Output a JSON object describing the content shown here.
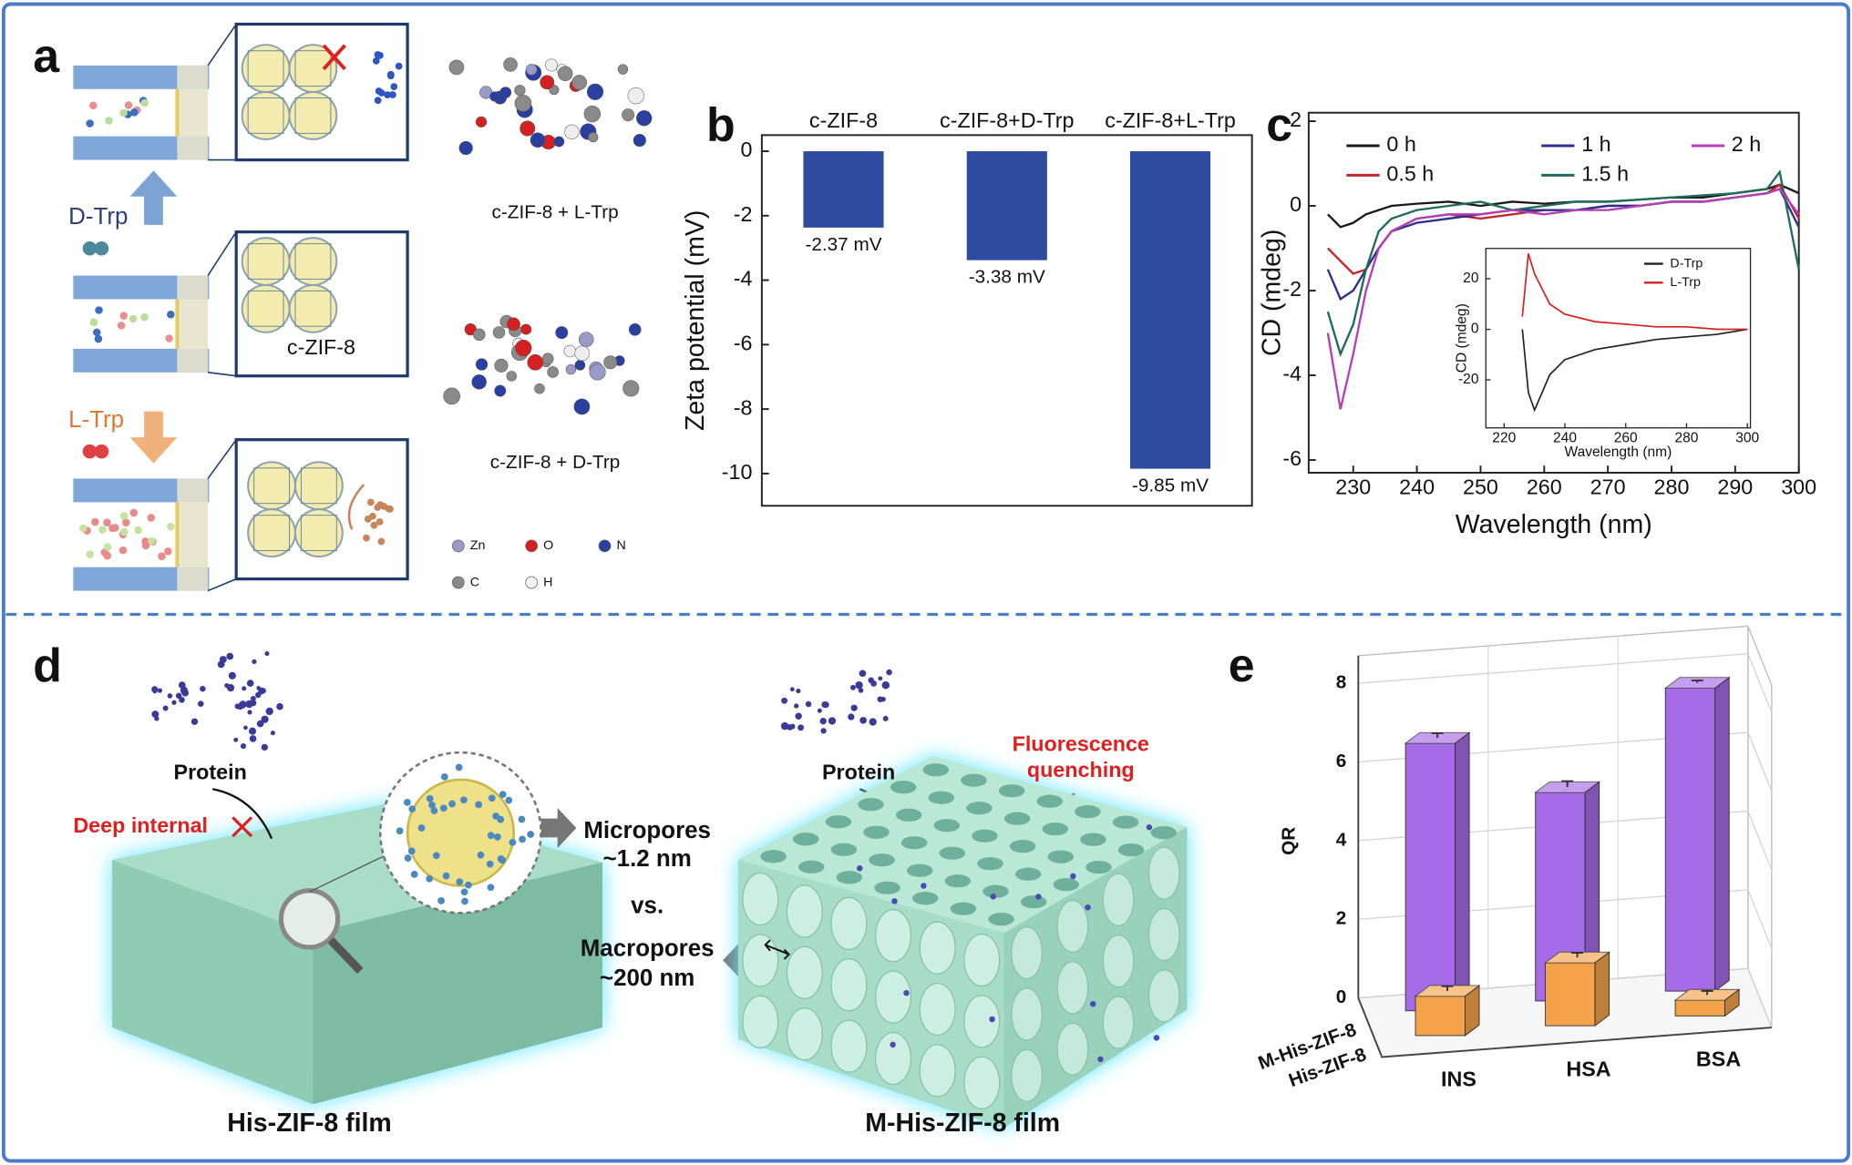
{
  "panel_labels": [
    "a",
    "b",
    "c",
    "d",
    "e"
  ],
  "panel_a": {
    "box_label": "c-ZIF-8",
    "up_label": "D-Trp",
    "down_label": "L-Trp",
    "top_model": "c-ZIF-8 + L-Trp",
    "bottom_model": "c-ZIF-8 + D-Trp",
    "atoms": [
      "Zn",
      "O",
      "N",
      "C",
      "H"
    ]
  },
  "panel_d": {
    "left_protein": "Protein",
    "right_protein": "Protein",
    "deep_internal": "Deep internal",
    "fluorescence": [
      "Fluorescence",
      "quenching"
    ],
    "micropores": [
      "Micropores",
      "~1.2 nm"
    ],
    "vs": "vs.",
    "macropores": [
      "Macropores",
      "~200 nm"
    ],
    "left_caption": "His-ZIF-8 film",
    "right_caption": "M-His-ZIF-8 film"
  },
  "chart_data": [
    {
      "type": "bar",
      "ylabel": "Zeta potential (mV)",
      "categories": [
        "c-ZIF-8",
        "c-ZIF-8+D-Trp",
        "c-ZIF-8+L-Trp"
      ],
      "values": [
        -2.37,
        -3.38,
        -9.85
      ],
      "value_labels": [
        "-2.37 mV",
        "-3.38 mV",
        "-9.85 mV"
      ],
      "color": "#2f4b9f",
      "ylim": [
        -11,
        0.5
      ],
      "yticks": [
        0,
        -2,
        -4,
        -6,
        -8,
        -10
      ]
    },
    {
      "type": "line",
      "xlabel": "Wavelength (nm)",
      "ylabel": "CD (mdeg)",
      "x": [
        226,
        228,
        230,
        232,
        234,
        236,
        240,
        245,
        250,
        255,
        260,
        265,
        270,
        275,
        280,
        285,
        290,
        295,
        297,
        300
      ],
      "series": [
        {
          "name": "0 h",
          "color": "#1a1a1a",
          "values": [
            -0.2,
            -0.5,
            -0.4,
            -0.2,
            -0.1,
            0,
            0.05,
            0.1,
            0,
            0.1,
            0.05,
            0.1,
            0.1,
            0.15,
            0.2,
            0.2,
            0.3,
            0.4,
            0.5,
            0.3
          ]
        },
        {
          "name": "0.5 h",
          "color": "#c0282d",
          "values": [
            -1.0,
            -1.3,
            -1.6,
            -1.5,
            -1.0,
            -0.6,
            -0.3,
            -0.2,
            -0.3,
            -0.2,
            -0.1,
            -0.1,
            0,
            0,
            0.1,
            0.1,
            0.2,
            0.3,
            0.5,
            -0.3
          ]
        },
        {
          "name": "1 h",
          "color": "#2c2f8c",
          "values": [
            -1.5,
            -2.2,
            -2.0,
            -1.5,
            -1.0,
            -0.6,
            -0.4,
            -0.3,
            -0.2,
            -0.1,
            -0.1,
            -0.1,
            0,
            0,
            0.1,
            0.1,
            0.2,
            0.3,
            0.4,
            -0.5
          ]
        },
        {
          "name": "1.5 h",
          "color": "#1f6b5c",
          "values": [
            -2.5,
            -3.5,
            -2.8,
            -1.5,
            -0.6,
            -0.3,
            -0.1,
            0,
            0.1,
            -0.1,
            0,
            0.1,
            0.1,
            0.15,
            0.2,
            0.25,
            0.3,
            0.4,
            0.8,
            -1.5
          ]
        },
        {
          "name": "2 h",
          "color": "#b43fb4",
          "values": [
            -3.0,
            -4.8,
            -3.5,
            -2.0,
            -1.0,
            -0.6,
            -0.3,
            -0.2,
            -0.2,
            -0.1,
            -0.2,
            -0.1,
            -0.1,
            0,
            0.1,
            0.1,
            0.2,
            0.3,
            0.4,
            -0.2
          ]
        }
      ],
      "xlim": [
        223,
        300
      ],
      "ylim": [
        -6.3,
        2.2
      ],
      "xticks": [
        230,
        240,
        250,
        260,
        270,
        280,
        290,
        300
      ],
      "yticks": [
        2,
        0,
        -2,
        -4,
        -6
      ],
      "inset": {
        "type": "line",
        "xlabel": "Wavelength (nm)",
        "ylabel": "CD (mdeg)",
        "x": [
          226,
          228,
          230,
          235,
          240,
          250,
          260,
          270,
          280,
          290,
          300
        ],
        "series": [
          {
            "name": "D-Trp",
            "color": "#222222",
            "values": [
              0,
              -25,
              -32,
              -18,
              -12,
              -8,
              -6,
              -4,
              -3,
              -2,
              0
            ]
          },
          {
            "name": "L-Trp",
            "color": "#d42020",
            "values": [
              5,
              30,
              22,
              10,
              6,
              3,
              2,
              1,
              1,
              0,
              0
            ]
          }
        ],
        "xlim": [
          214,
          301
        ],
        "ylim": [
          -39,
          32
        ],
        "xticks": [
          220,
          240,
          260,
          280,
          300
        ],
        "yticks": [
          20,
          0,
          -20
        ]
      }
    },
    {
      "type": "bar3d",
      "ylabel": "QR",
      "categories": [
        "INS",
        "HSA",
        "BSA"
      ],
      "series": [
        {
          "name": "M-His-ZIF-8",
          "color": "#a66be6",
          "values": [
            6.8,
            5.3,
            7.7
          ],
          "errors": [
            0.12,
            0.15,
            0.06
          ]
        },
        {
          "name": "His-ZIF-8",
          "color": "#f5a34a",
          "values": [
            1.0,
            1.6,
            0.4
          ],
          "errors": [
            0.12,
            0.12,
            0.1
          ]
        }
      ],
      "ylim": [
        0,
        8.7
      ],
      "yticks": [
        0,
        2,
        4,
        6,
        8
      ]
    }
  ]
}
